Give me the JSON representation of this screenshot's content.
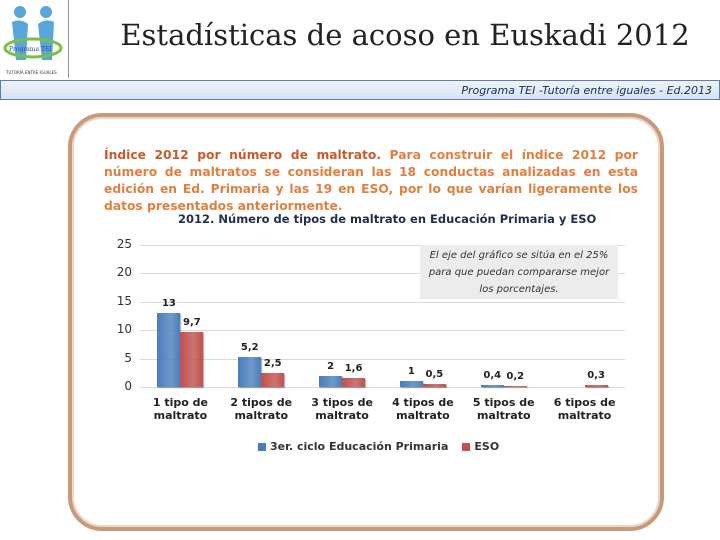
{
  "header": {
    "logo_text": "Programa TEI",
    "logo_caption": "TUTORÍA ENTRE IGUALES",
    "title": "Estadísticas de acoso en Euskadi 2012",
    "subtitle": "Programa TEI -Tutoría entre iguales - Ed.2013"
  },
  "intro": {
    "lead": "Índice 2012 por número de maltrato.",
    "body": "Para construir el índice 2012 por número de maltratos se consideran las 18 conductas analizadas en esta edición en Ed. Primaria y las 19 en ESO, por lo que varían ligeramente los datos presentados anteriormente."
  },
  "chart_data": {
    "type": "bar",
    "title": "2012. Número de tipos de maltrato en Educación Primaria y ESO",
    "annotation": "El eje del gráfico se sitúa en el 25% para que puedan compararse mejor los porcentajes.",
    "categories": [
      "1 tipo de maltrato",
      "2 tipos de maltrato",
      "3 tipos de maltrato",
      "4 tipos de maltrato",
      "5 tipos de maltrato",
      "6 tipos de maltrato"
    ],
    "series": [
      {
        "name": "3er. ciclo Educación Primaria",
        "color": "#4a7ebb",
        "values": [
          13,
          5.2,
          2,
          1,
          0.4,
          null
        ],
        "value_labels": [
          "13",
          "5,2",
          "2",
          "1",
          "0,4",
          null
        ]
      },
      {
        "name": "ESO",
        "color": "#c0504d",
        "values": [
          9.7,
          2.5,
          1.6,
          0.5,
          0.2,
          0.3
        ],
        "value_labels": [
          "9,7",
          "2,5",
          "1,6",
          "0,5",
          "0,2",
          "0,3"
        ]
      }
    ],
    "ylim": [
      0,
      25
    ],
    "yticks": [
      0,
      5,
      10,
      15,
      20,
      25
    ],
    "grid": true,
    "legend": "bottom"
  }
}
